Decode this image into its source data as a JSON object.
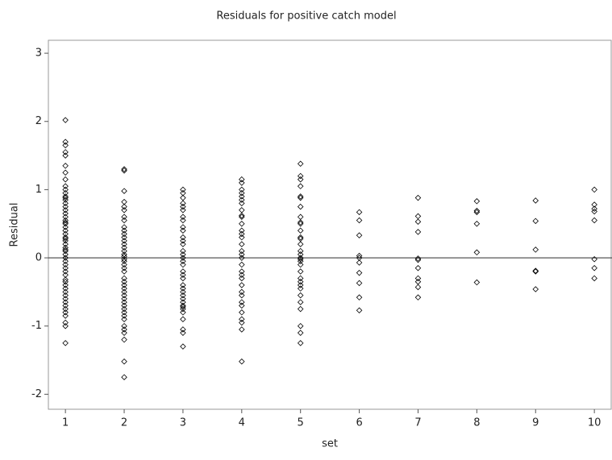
{
  "chart_data": {
    "type": "scatter",
    "title": "Residuals for positive catch model",
    "x_label": "set",
    "y_label": "Residual",
    "xlim": [
      0.71,
      10.3
    ],
    "ylim": [
      -2.22,
      3.19
    ],
    "xticks": [
      1,
      2,
      3,
      4,
      5,
      6,
      7,
      8,
      9,
      10
    ],
    "yticks": [
      -2,
      -1,
      0,
      1,
      2,
      3
    ],
    "reference_line": 0,
    "color": "#000000",
    "groups": [
      {
        "x": 1,
        "values": [
          2.02,
          1.7,
          1.65,
          1.55,
          1.5,
          1.35,
          1.25,
          1.15,
          1.05,
          1.0,
          0.95,
          0.9,
          0.88,
          0.85,
          0.8,
          0.75,
          0.7,
          0.65,
          0.6,
          0.55,
          0.52,
          0.5,
          0.45,
          0.4,
          0.35,
          0.3,
          0.28,
          0.25,
          0.2,
          0.15,
          0.12,
          0.1,
          0.05,
          0.0,
          -0.05,
          -0.1,
          -0.15,
          -0.2,
          -0.25,
          -0.32,
          -0.35,
          -0.4,
          -0.45,
          -0.5,
          -0.55,
          -0.6,
          -0.65,
          -0.7,
          -0.75,
          -0.8,
          -0.85,
          -0.95,
          -1.0,
          -1.25
        ]
      },
      {
        "x": 2,
        "values": [
          1.3,
          1.28,
          0.98,
          0.82,
          0.75,
          0.7,
          0.6,
          0.55,
          0.45,
          0.4,
          0.35,
          0.3,
          0.25,
          0.2,
          0.15,
          0.1,
          0.05,
          0.02,
          -0.02,
          -0.05,
          -0.1,
          -0.15,
          -0.2,
          -0.3,
          -0.35,
          -0.4,
          -0.45,
          -0.5,
          -0.55,
          -0.6,
          -0.65,
          -0.7,
          -0.75,
          -0.8,
          -0.85,
          -0.9,
          -1.0,
          -1.05,
          -1.1,
          -1.2,
          -1.52,
          -1.75
        ]
      },
      {
        "x": 3,
        "values": [
          1.0,
          0.95,
          0.88,
          0.8,
          0.75,
          0.7,
          0.6,
          0.55,
          0.45,
          0.4,
          0.3,
          0.25,
          0.2,
          0.1,
          0.05,
          0.0,
          -0.05,
          -0.1,
          -0.2,
          -0.25,
          -0.3,
          -0.4,
          -0.45,
          -0.5,
          -0.55,
          -0.6,
          -0.65,
          -0.7,
          -0.72,
          -0.75,
          -0.8,
          -0.9,
          -1.05,
          -1.1,
          -1.3
        ]
      },
      {
        "x": 4,
        "values": [
          1.15,
          1.1,
          1.0,
          0.95,
          0.9,
          0.85,
          0.8,
          0.7,
          0.62,
          0.6,
          0.5,
          0.4,
          0.35,
          0.3,
          0.2,
          0.1,
          0.05,
          0.0,
          -0.1,
          -0.2,
          -0.25,
          -0.3,
          -0.4,
          -0.5,
          -0.55,
          -0.65,
          -0.7,
          -0.8,
          -0.9,
          -0.95,
          -1.05,
          -1.52
        ]
      },
      {
        "x": 5,
        "values": [
          1.38,
          1.2,
          1.15,
          1.05,
          0.9,
          0.88,
          0.75,
          0.6,
          0.52,
          0.5,
          0.4,
          0.3,
          0.28,
          0.2,
          0.1,
          0.05,
          0.0,
          -0.02,
          -0.05,
          -0.1,
          -0.2,
          -0.3,
          -0.35,
          -0.4,
          -0.45,
          -0.55,
          -0.65,
          -0.75,
          -1.0,
          -1.1,
          -1.25
        ]
      },
      {
        "x": 6,
        "values": [
          0.67,
          0.55,
          0.33,
          0.03,
          0.0,
          -0.07,
          -0.22,
          -0.37,
          -0.58,
          -0.77
        ]
      },
      {
        "x": 7,
        "values": [
          0.88,
          0.61,
          0.53,
          0.38,
          -0.01,
          -0.03,
          -0.15,
          -0.3,
          -0.35,
          -0.43,
          -0.58
        ]
      },
      {
        "x": 8,
        "values": [
          0.83,
          0.69,
          0.67,
          0.5,
          0.08,
          -0.36
        ]
      },
      {
        "x": 9,
        "values": [
          0.84,
          0.54,
          0.12,
          -0.19,
          -0.2,
          -0.46
        ]
      },
      {
        "x": 10,
        "values": [
          1.0,
          0.78,
          0.72,
          0.68,
          0.55,
          -0.02,
          -0.15,
          -0.3
        ]
      }
    ]
  }
}
